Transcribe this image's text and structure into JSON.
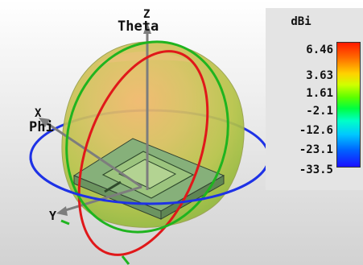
{
  "axes": {
    "x": "X",
    "y": "Y",
    "z": "Z",
    "theta": "Theta",
    "phi": "Phi"
  },
  "legend": {
    "unit": "dBi",
    "ticks": [
      "6.46",
      "3.63",
      "1.61",
      "-2.1",
      "-12.6",
      "-23.1",
      "-33.5"
    ]
  },
  "colors": {
    "theta_ring": "#e0181a",
    "phi_ring": "#1e32e6",
    "green_ring": "#1fb41f",
    "pattern_body": "#b8b44a",
    "legend_background": "#e4e4e4"
  }
}
